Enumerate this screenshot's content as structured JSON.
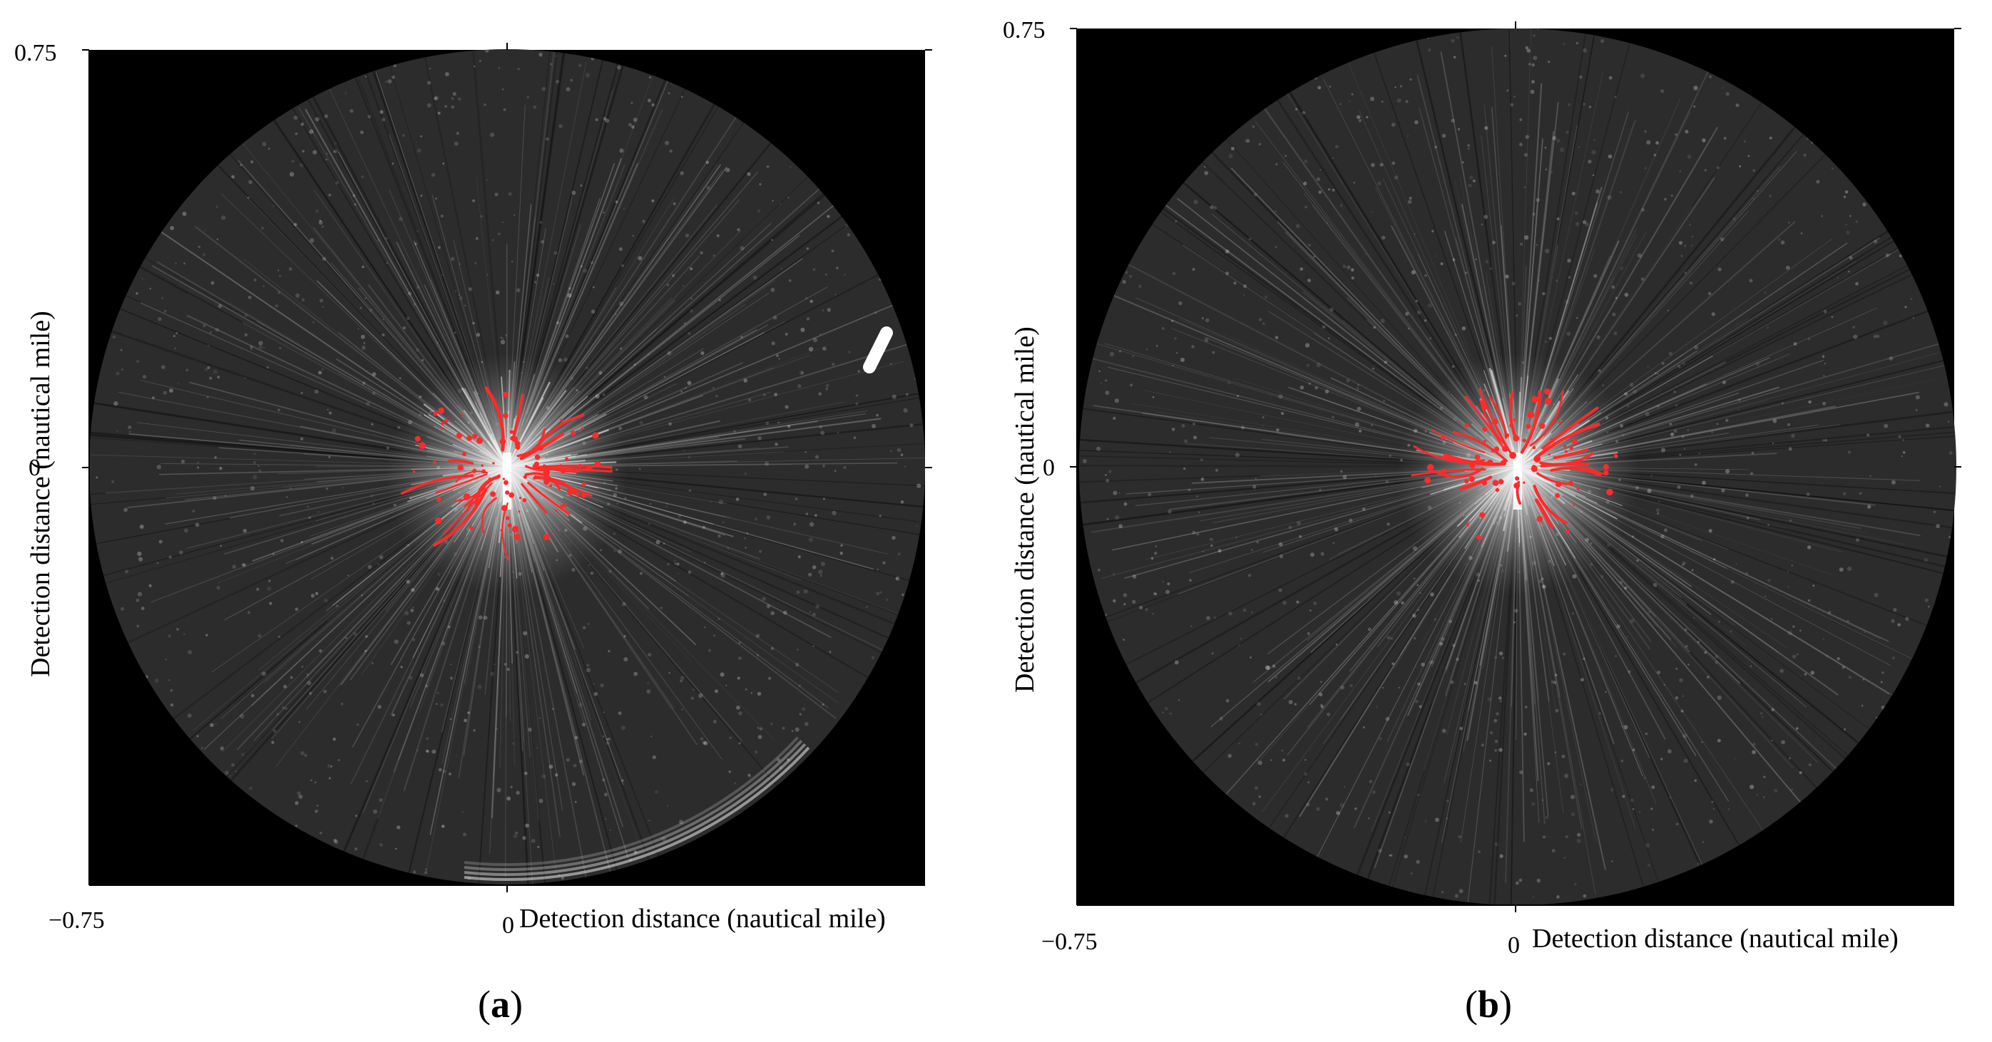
{
  "colors": {
    "background": "#ffffff",
    "plot_background": "#000000",
    "clutter_disc": "#2c2c2c",
    "echo_highlight": "#f2f2f2",
    "detection_marks": "#ff2a2a"
  },
  "panels": [
    {
      "id": "a",
      "caption_letter": "a",
      "caption_open": "(",
      "caption_close": ")",
      "y_top_tick": "0.75",
      "y_zero_tick": "0",
      "x_left_tick": "−0.75",
      "x_zero_tick": "0",
      "x_axis_title": "Detection distance (nautical mile)",
      "y_axis_title": "Detection distance (nautical mile)",
      "has_bright_target_upper_right": true,
      "has_ring_artifact_bottom": true
    },
    {
      "id": "b",
      "caption_letter": "b",
      "caption_open": "(",
      "caption_close": ")",
      "y_top_tick": "0.75",
      "y_zero_tick": "0",
      "x_left_tick": "−0.75",
      "x_zero_tick": "0",
      "x_axis_title": "Detection distance (nautical mile)",
      "y_axis_title": "Detection distance (nautical mile)",
      "has_bright_target_upper_right": false,
      "has_ring_artifact_bottom": false
    }
  ]
}
